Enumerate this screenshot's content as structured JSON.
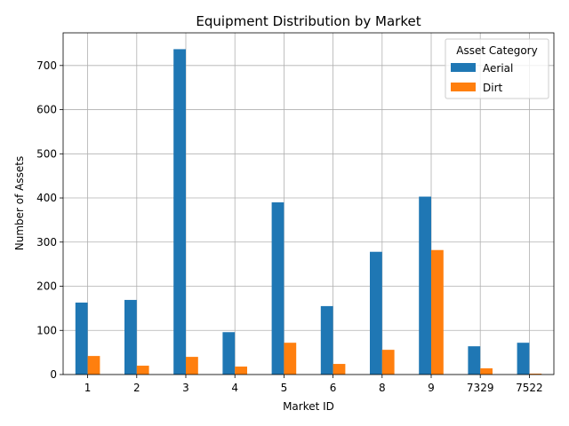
{
  "chart_data": {
    "type": "bar",
    "title": "Equipment Distribution by Market",
    "xlabel": "Market ID",
    "ylabel": "Number of Assets",
    "categories": [
      "1",
      "2",
      "3",
      "4",
      "5",
      "6",
      "8",
      "9",
      "7329",
      "7522"
    ],
    "series": [
      {
        "name": "Aerial",
        "color": "#1f77b4",
        "values": [
          163,
          169,
          737,
          96,
          390,
          155,
          278,
          403,
          64,
          72
        ]
      },
      {
        "name": "Dirt",
        "color": "#ff7f0e",
        "values": [
          42,
          20,
          40,
          18,
          72,
          24,
          56,
          282,
          14,
          2
        ]
      }
    ],
    "ylim": [
      0,
      774
    ],
    "yticks": [
      0,
      100,
      200,
      300,
      400,
      500,
      600,
      700
    ],
    "grid": true,
    "legend": {
      "title": "Asset Category",
      "placement": "top-right"
    }
  }
}
